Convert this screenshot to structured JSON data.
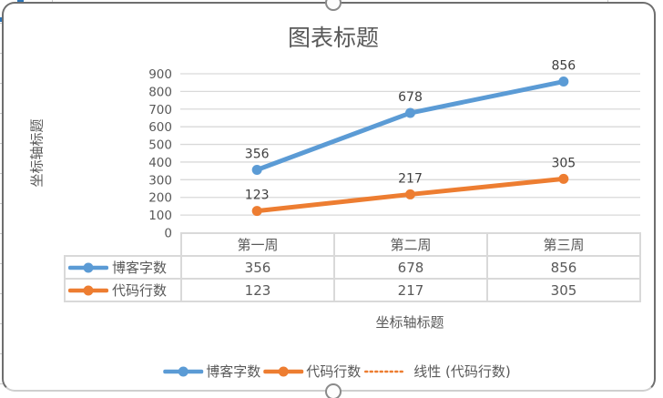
{
  "chart": {
    "title": "图表标题",
    "y_axis_title": "坐标轴标题",
    "x_axis_title": "坐标轴标题"
  },
  "chart_data": {
    "type": "line",
    "title": "图表标题",
    "xlabel": "坐标轴标题",
    "ylabel": "坐标轴标题",
    "categories": [
      "第一周",
      "第二周",
      "第三周"
    ],
    "series": [
      {
        "name": "博客字数",
        "values": [
          356,
          678,
          856
        ],
        "color": "#5B9BD5",
        "style": "solid"
      },
      {
        "name": "代码行数",
        "values": [
          123,
          217,
          305
        ],
        "color": "#ED7D31",
        "style": "solid"
      },
      {
        "name": "线性 (代码行数)",
        "style": "dotted",
        "color": "#ED7D31",
        "trendline_of": "代码行数"
      }
    ],
    "ylim": [
      0,
      900
    ],
    "y_tick_step": 100,
    "grid": true,
    "legend_position": "bottom",
    "data_labels_shown": true,
    "data_table_shown": true
  },
  "colors": {
    "series_blue": "#5B9BD5",
    "series_orange": "#ED7D31",
    "gridline": "#D9D9D9",
    "axis_text": "#595959",
    "data_label_text": "#3F3F3F",
    "table_border": "#D9D9D9"
  }
}
